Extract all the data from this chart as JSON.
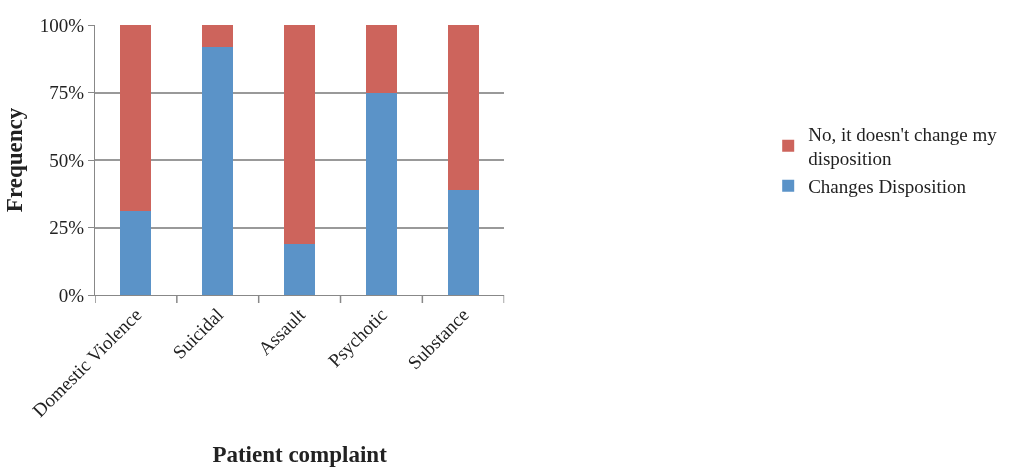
{
  "chart_data": {
    "type": "bar",
    "stacked": true,
    "xlabel": "Patient complaint",
    "ylabel": "Frequency",
    "categories": [
      "Domestic Violence",
      "Suicidal",
      "Assault",
      "Psychotic",
      "Substance"
    ],
    "series": [
      {
        "name": "Changes Disposition",
        "color": "#5b93c8",
        "values": [
          31,
          92,
          19,
          75,
          39
        ]
      },
      {
        "name": "No, it doesn't change my disposition",
        "color": "#cd645c",
        "values": [
          69,
          8,
          81,
          25,
          61
        ]
      }
    ],
    "ylim": [
      0,
      100
    ],
    "yticks": [
      {
        "value": 0,
        "label": "0%"
      },
      {
        "value": 25,
        "label": "25%"
      },
      {
        "value": 50,
        "label": "50%"
      },
      {
        "value": 75,
        "label": "75%"
      },
      {
        "value": 100,
        "label": "100%"
      }
    ],
    "grid": "y",
    "legend": "right"
  }
}
